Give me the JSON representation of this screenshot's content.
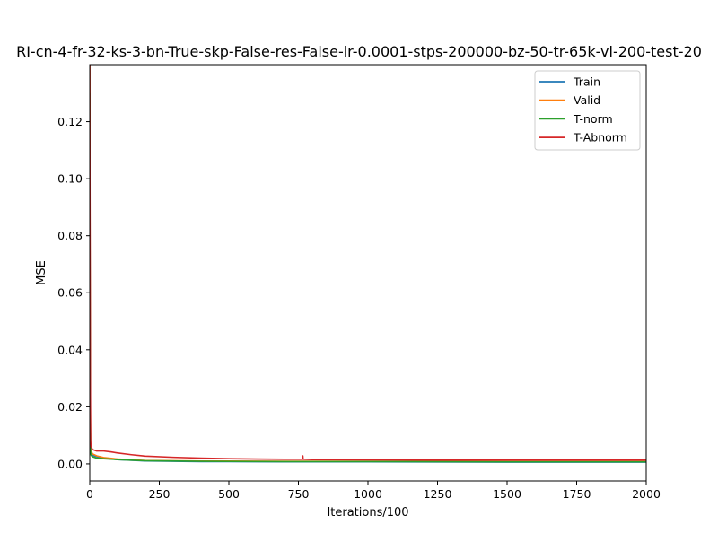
{
  "chart_data": {
    "type": "line",
    "title": "RI-cn-4-fr-32-ks-3-bn-True-skp-False-res-False-lr-0.0001-stps-200000-bz-50-tr-65k-vl-200-test-20",
    "xlabel": "Iterations/100",
    "ylabel": "MSE",
    "xlim": [
      0,
      2000
    ],
    "ylim": [
      -0.006,
      0.14
    ],
    "xticks": [
      0,
      250,
      500,
      750,
      1000,
      1250,
      1500,
      1750,
      2000
    ],
    "yticks": [
      0.0,
      0.02,
      0.04,
      0.06,
      0.08,
      0.1,
      0.12
    ],
    "ytick_labels": [
      "0.00",
      "0.02",
      "0.04",
      "0.06",
      "0.08",
      "0.10",
      "0.12"
    ],
    "legend_position": "upper right",
    "series": [
      {
        "name": "Train",
        "color": "#1f77b4",
        "x": [
          0,
          1,
          2,
          3,
          5,
          10,
          25,
          50,
          100,
          200,
          400,
          700,
          1000,
          1500,
          2000
        ],
        "y": [
          0.14,
          0.06,
          0.02,
          0.006,
          0.004,
          0.003,
          0.0025,
          0.002,
          0.0015,
          0.001,
          0.0008,
          0.0007,
          0.0007,
          0.0006,
          0.0006
        ]
      },
      {
        "name": "Valid",
        "color": "#ff7f0e",
        "x": [
          0,
          1,
          2,
          3,
          5,
          10,
          25,
          50,
          100,
          200,
          400,
          700,
          1000,
          1500,
          2000
        ],
        "y": [
          0.14,
          0.07,
          0.025,
          0.007,
          0.0045,
          0.0035,
          0.0028,
          0.0022,
          0.0017,
          0.0012,
          0.001,
          0.0009,
          0.0009,
          0.0008,
          0.0008
        ]
      },
      {
        "name": "T-norm",
        "color": "#2ca02c",
        "x": [
          0,
          1,
          2,
          3,
          5,
          10,
          25,
          50,
          100,
          200,
          400,
          700,
          1000,
          1500,
          2000
        ],
        "y": [
          0.13,
          0.05,
          0.015,
          0.004,
          0.003,
          0.0025,
          0.002,
          0.0018,
          0.0015,
          0.0011,
          0.0009,
          0.0008,
          0.0008,
          0.0007,
          0.0007
        ]
      },
      {
        "name": "T-Abnorm",
        "color": "#d62728",
        "x": [
          0,
          1,
          2,
          3,
          5,
          10,
          25,
          50,
          75,
          100,
          150,
          200,
          300,
          400,
          500,
          600,
          700,
          765,
          766,
          767,
          800,
          1000,
          1250,
          1500,
          1750,
          2000
        ],
        "y": [
          0.14,
          0.08,
          0.03,
          0.008,
          0.006,
          0.005,
          0.0045,
          0.0045,
          0.0042,
          0.0038,
          0.0032,
          0.0027,
          0.0023,
          0.002,
          0.0018,
          0.0017,
          0.0016,
          0.0016,
          0.0028,
          0.0016,
          0.0015,
          0.0014,
          0.0013,
          0.0013,
          0.0013,
          0.0013
        ]
      }
    ]
  }
}
